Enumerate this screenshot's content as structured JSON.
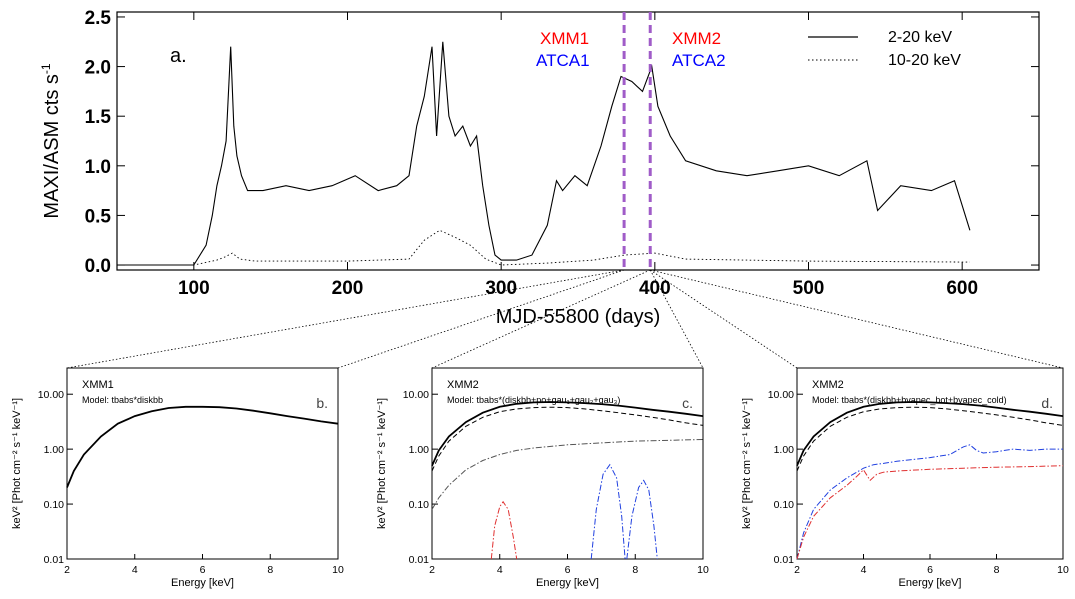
{
  "top_panel": {
    "panel_label": "a.",
    "ylabel": "MAXI/ASM cts s",
    "ylabel_sup": "-1",
    "xlabel": "MJD-55800 (days)",
    "x_ticks": [
      "100",
      "200",
      "300",
      "400",
      "500",
      "600"
    ],
    "y_ticks": [
      "0.0",
      "0.5",
      "1.0",
      "1.5",
      "2.0",
      "2.5"
    ],
    "obs_left": {
      "xmm": "XMM1",
      "atca": "ATCA1"
    },
    "obs_right": {
      "xmm": "XMM2",
      "atca": "ATCA2"
    },
    "legend": [
      {
        "label": "2-20 keV",
        "style": "solid"
      },
      {
        "label": "10-20 keV",
        "style": "dotted"
      }
    ]
  },
  "panels": [
    {
      "panel_label": "b.",
      "title": "XMM1",
      "model": "Model: tbabs*diskbb",
      "xlabel": "Energy [keV]",
      "ylabel": "keV² [Phot cm⁻² s⁻¹ keV⁻¹]",
      "x_ticks": [
        "2",
        "4",
        "6",
        "8",
        "10"
      ],
      "y_ticks": [
        "10.00",
        "1.00",
        "0.10",
        "0.01"
      ]
    },
    {
      "panel_label": "c.",
      "title": "XMM2",
      "model": "Model: tbabs*(diskbb+po+gau₁+gau₂+gau₃)",
      "xlabel": "Energy [keV]",
      "ylabel": "keV² [Phot cm⁻² s⁻¹ keV⁻¹]",
      "x_ticks": [
        "2",
        "4",
        "6",
        "8",
        "10"
      ],
      "y_ticks": [
        "10.00",
        "1.00",
        "0.10",
        "0.01"
      ]
    },
    {
      "panel_label": "d.",
      "title": "XMM2",
      "model": "Model: tbabs*(diskbb+bvapec_hot+bvapec_cold)",
      "xlabel": "Energy [keV]",
      "ylabel": "keV² [Phot cm⁻² s⁻¹ keV⁻¹]",
      "x_ticks": [
        "2",
        "4",
        "6",
        "8",
        "10"
      ],
      "y_ticks": [
        "10.00",
        "1.00",
        "0.10",
        "0.01"
      ]
    }
  ],
  "colors": {
    "obs_line": "#a05cc8",
    "xmm_text": "#ff0000",
    "atca_text": "#0000ff",
    "red_component": "#e03030",
    "blue_component": "#2040e0"
  },
  "chart_data": [
    {
      "type": "line",
      "title": "",
      "xlabel": "MJD-55800 (days)",
      "ylabel": "MAXI/ASM cts s-1",
      "xlim": [
        50,
        650
      ],
      "ylim": [
        -0.05,
        2.55
      ],
      "grid": false,
      "legend_position": "top-right",
      "observations": [
        {
          "name": "XMM1 / ATCA1",
          "x": 380
        },
        {
          "name": "XMM2 / ATCA2",
          "x": 397
        }
      ],
      "series": [
        {
          "name": "2-20 keV",
          "style": "solid",
          "x": [
            50,
            100,
            108,
            112,
            115,
            118,
            121,
            124,
            126,
            128,
            131,
            135,
            145,
            160,
            175,
            190,
            205,
            220,
            232,
            240,
            245,
            250,
            255,
            258,
            262,
            266,
            270,
            275,
            280,
            284,
            288,
            292,
            296,
            300,
            310,
            320,
            330,
            336,
            340,
            348,
            356,
            365,
            372,
            378,
            385,
            392,
            398,
            402,
            410,
            420,
            440,
            460,
            480,
            500,
            520,
            538,
            545,
            560,
            580,
            595,
            605
          ],
          "y": [
            0.0,
            0.0,
            0.2,
            0.5,
            0.8,
            1.0,
            1.25,
            2.2,
            1.4,
            1.1,
            0.9,
            0.75,
            0.75,
            0.8,
            0.75,
            0.8,
            0.9,
            0.75,
            0.8,
            0.9,
            1.4,
            1.7,
            2.2,
            1.3,
            2.25,
            1.5,
            1.3,
            1.4,
            1.2,
            1.3,
            0.8,
            0.4,
            0.1,
            0.05,
            0.05,
            0.1,
            0.4,
            0.85,
            0.75,
            0.9,
            0.8,
            1.2,
            1.6,
            1.9,
            1.85,
            1.75,
            2.0,
            1.6,
            1.3,
            1.05,
            0.95,
            0.9,
            0.95,
            1.0,
            0.9,
            1.05,
            0.55,
            0.8,
            0.75,
            0.85,
            0.35
          ]
        },
        {
          "name": "10-20 keV",
          "style": "dotted",
          "x": [
            50,
            100,
            115,
            120,
            125,
            130,
            140,
            200,
            240,
            250,
            260,
            270,
            280,
            290,
            300,
            330,
            360,
            380,
            400,
            420,
            500,
            605
          ],
          "y": [
            0.0,
            0.0,
            0.05,
            0.08,
            0.12,
            0.06,
            0.04,
            0.04,
            0.06,
            0.25,
            0.35,
            0.28,
            0.2,
            0.06,
            0.0,
            0.02,
            0.05,
            0.1,
            0.12,
            0.06,
            0.04,
            0.03
          ]
        }
      ]
    },
    {
      "type": "line",
      "title": "XMM1",
      "xlabel": "Energy [keV]",
      "ylabel": "keV² [Phot cm⁻² s⁻¹ keV⁻¹]",
      "xlim": [
        2,
        10
      ],
      "ylim": [
        0.01,
        30
      ],
      "log_y": true,
      "series": [
        {
          "name": "data",
          "style": "solid",
          "x": [
            2.0,
            2.2,
            2.5,
            3.0,
            3.5,
            4.0,
            4.5,
            5.0,
            5.5,
            6.0,
            6.5,
            7.0,
            7.5,
            8.0,
            8.5,
            9.0,
            9.5,
            10.0
          ],
          "y": [
            0.2,
            0.4,
            0.8,
            1.7,
            2.9,
            4.0,
            4.9,
            5.6,
            5.9,
            5.9,
            5.8,
            5.5,
            5.0,
            4.5,
            4.0,
            3.6,
            3.2,
            2.9
          ]
        }
      ]
    },
    {
      "type": "line",
      "title": "XMM2",
      "xlabel": "Energy [keV]",
      "ylabel": "keV² [Phot cm⁻² s⁻¹ keV⁻¹]",
      "xlim": [
        2,
        10
      ],
      "ylim": [
        0.01,
        30
      ],
      "log_y": true,
      "series": [
        {
          "name": "data",
          "style": "solid",
          "x": [
            2.0,
            2.2,
            2.5,
            3.0,
            3.5,
            4.0,
            4.5,
            5.0,
            5.5,
            6.0,
            6.5,
            7.0,
            7.5,
            8.0,
            8.5,
            9.0,
            9.5,
            10.0
          ],
          "y": [
            0.5,
            0.95,
            1.7,
            3.1,
            4.6,
            5.9,
            6.7,
            7.1,
            7.2,
            7.1,
            6.9,
            6.6,
            6.2,
            5.7,
            5.2,
            4.8,
            4.4,
            4.0
          ]
        },
        {
          "name": "disk",
          "style": "dashed",
          "x": [
            2.0,
            2.2,
            2.5,
            3.0,
            3.5,
            4.0,
            4.5,
            5.0,
            5.5,
            6.0,
            6.5,
            7.0,
            7.5,
            8.0,
            8.5,
            9.0,
            9.5,
            10.0
          ],
          "y": [
            0.4,
            0.75,
            1.4,
            2.6,
            3.8,
            4.8,
            5.4,
            5.7,
            5.8,
            5.7,
            5.4,
            5.0,
            4.6,
            4.2,
            3.8,
            3.4,
            3.0,
            2.7
          ]
        },
        {
          "name": "po",
          "style": "dashdot",
          "x": [
            2.0,
            2.2,
            2.5,
            3.0,
            3.5,
            4.0,
            4.5,
            5.0,
            6.0,
            7.0,
            8.0,
            9.0,
            10.0
          ],
          "y": [
            0.08,
            0.13,
            0.22,
            0.42,
            0.62,
            0.8,
            0.95,
            1.05,
            1.2,
            1.3,
            1.4,
            1.45,
            1.5
          ]
        },
        {
          "name": "gau1",
          "style": "dashdot",
          "color": "red",
          "x": [
            3.75,
            3.85,
            4.0,
            4.1,
            4.25,
            4.4,
            4.5
          ],
          "y": [
            0.01,
            0.04,
            0.09,
            0.11,
            0.08,
            0.025,
            0.01
          ]
        },
        {
          "name": "gau2",
          "style": "dashdot",
          "color": "blue",
          "x": [
            6.7,
            6.85,
            7.05,
            7.25,
            7.45,
            7.6,
            7.7
          ],
          "y": [
            0.01,
            0.08,
            0.35,
            0.52,
            0.3,
            0.06,
            0.01
          ]
        },
        {
          "name": "gau3",
          "style": "dashdot",
          "color": "blue",
          "x": [
            7.75,
            7.9,
            8.1,
            8.25,
            8.4,
            8.55,
            8.65
          ],
          "y": [
            0.01,
            0.06,
            0.2,
            0.27,
            0.18,
            0.04,
            0.01
          ]
        }
      ]
    },
    {
      "type": "line",
      "title": "XMM2",
      "xlabel": "Energy [keV]",
      "ylabel": "keV² [Phot cm⁻² s⁻¹ keV⁻¹]",
      "xlim": [
        2,
        10
      ],
      "ylim": [
        0.01,
        30
      ],
      "log_y": true,
      "series": [
        {
          "name": "data",
          "style": "solid",
          "x": [
            2.0,
            2.2,
            2.5,
            3.0,
            3.5,
            4.0,
            4.5,
            5.0,
            5.5,
            6.0,
            6.5,
            7.0,
            7.5,
            8.0,
            8.5,
            9.0,
            9.5,
            10.0
          ],
          "y": [
            0.5,
            0.95,
            1.7,
            3.1,
            4.6,
            5.9,
            6.7,
            7.1,
            7.2,
            7.1,
            6.9,
            6.6,
            6.2,
            5.7,
            5.2,
            4.8,
            4.4,
            4.0
          ]
        },
        {
          "name": "disk",
          "style": "dashed",
          "x": [
            2.0,
            2.2,
            2.5,
            3.0,
            3.5,
            4.0,
            4.5,
            5.0,
            5.5,
            6.0,
            6.5,
            7.0,
            7.5,
            8.0,
            8.5,
            9.0,
            9.5,
            10.0
          ],
          "y": [
            0.4,
            0.75,
            1.4,
            2.6,
            3.8,
            4.8,
            5.4,
            5.7,
            5.8,
            5.7,
            5.4,
            5.0,
            4.6,
            4.2,
            3.8,
            3.4,
            3.0,
            2.7
          ]
        },
        {
          "name": "bvapec_hot",
          "style": "dashdot",
          "color": "blue",
          "x": [
            2.0,
            2.2,
            2.5,
            3.0,
            3.5,
            4.0,
            4.3,
            4.6,
            5.0,
            6.0,
            6.6,
            7.0,
            7.2,
            7.4,
            7.6,
            8.0,
            8.5,
            9.0,
            9.5,
            10.0
          ],
          "y": [
            0.01,
            0.03,
            0.08,
            0.18,
            0.3,
            0.45,
            0.52,
            0.55,
            0.6,
            0.7,
            0.8,
            1.1,
            1.2,
            0.95,
            0.85,
            0.9,
            1.0,
            0.95,
            1.0,
            1.0
          ]
        },
        {
          "name": "bvapec_cold",
          "style": "dashdot",
          "color": "red",
          "x": [
            2.0,
            2.2,
            2.5,
            3.0,
            3.5,
            3.8,
            4.0,
            4.2,
            4.4,
            4.6,
            5.0,
            6.0,
            7.0,
            8.0,
            9.0,
            10.0
          ],
          "y": [
            0.01,
            0.025,
            0.06,
            0.13,
            0.22,
            0.32,
            0.42,
            0.27,
            0.35,
            0.38,
            0.4,
            0.43,
            0.45,
            0.47,
            0.48,
            0.5
          ]
        }
      ]
    }
  ]
}
